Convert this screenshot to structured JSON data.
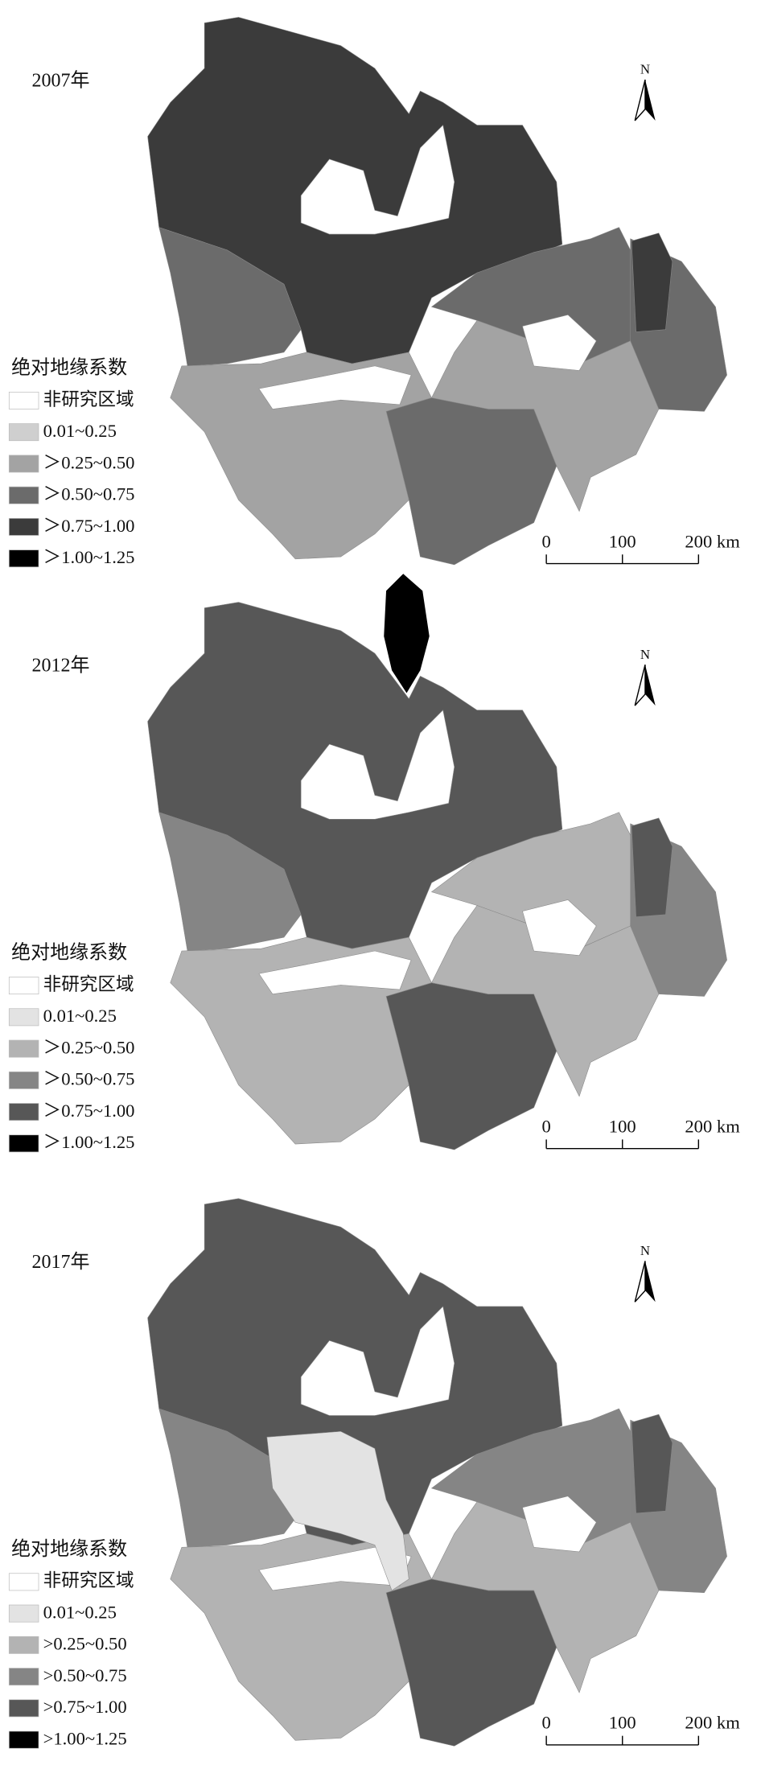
{
  "panels": [
    {
      "year": "2007年",
      "north": "N",
      "scale": [
        "0",
        "100",
        "200 km"
      ],
      "legend": {
        "title": "绝对地缘系数",
        "items": [
          "非研究区域",
          "0.01~0.25",
          "＞0.25~0.50",
          "＞0.50~0.75",
          "＞0.75~1.00",
          "＞1.00~1.25"
        ],
        "colors": [
          "#ffffff",
          "#cfcfcf",
          "#a3a3a3",
          "#6b6b6b",
          "#3b3b3b",
          "#000000"
        ]
      }
    },
    {
      "year": "2012年",
      "north": "N",
      "scale": [
        "0",
        "100",
        "200 km"
      ],
      "legend": {
        "title": "绝对地缘系数",
        "items": [
          "非研究区域",
          "0.01~0.25",
          "＞0.25~0.50",
          "＞0.50~0.75",
          "＞0.75~1.00",
          "＞1.00~1.25"
        ],
        "colors": [
          "#ffffff",
          "#e3e3e3",
          "#b3b3b3",
          "#858585",
          "#575757",
          "#000000"
        ]
      }
    },
    {
      "year": "2017年",
      "north": "N",
      "scale": [
        "0",
        "100",
        "200 km"
      ],
      "legend": {
        "title": "绝对地缘系数",
        "items": [
          "非研究区域",
          "0.01~0.25",
          ">0.25~0.50",
          ">0.50~0.75",
          ">0.75~1.00",
          ">1.00~1.25"
        ],
        "colors": [
          "#ffffff",
          "#e3e3e3",
          "#b3b3b3",
          "#858585",
          "#575757",
          "#000000"
        ]
      }
    }
  ]
}
